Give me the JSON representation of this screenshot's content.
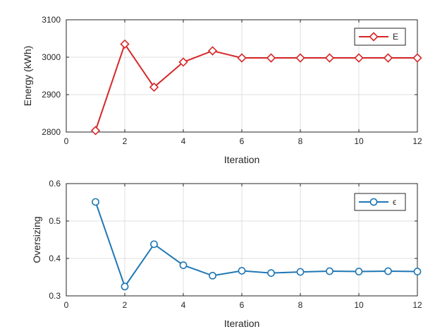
{
  "chart_data": [
    {
      "type": "line",
      "xlabel": "Iteration",
      "ylabel": "Energy (kWh)",
      "xlim": [
        0,
        12
      ],
      "ylim": [
        2800,
        3100
      ],
      "xticks": [
        "0",
        "2",
        "4",
        "6",
        "8",
        "10",
        "12"
      ],
      "yticks": [
        "2800",
        "2900",
        "3000",
        "3100"
      ],
      "grid": true,
      "legend_position": "top-right",
      "series": [
        {
          "name": "E",
          "color": "#d62728",
          "marker": "diamond",
          "x": [
            1,
            2,
            3,
            4,
            5,
            6,
            7,
            8,
            9,
            10,
            11,
            12
          ],
          "y": [
            2804,
            3035,
            2920,
            2987,
            3017,
            2998,
            2998,
            2998,
            2998,
            2998,
            2998,
            2998
          ]
        }
      ]
    },
    {
      "type": "line",
      "xlabel": "Iteration",
      "ylabel": "Oversizing",
      "xlim": [
        0,
        12
      ],
      "ylim": [
        0.3,
        0.6
      ],
      "xticks": [
        "0",
        "2",
        "4",
        "6",
        "8",
        "10",
        "12"
      ],
      "yticks": [
        "0.3",
        "0.4",
        "0.5",
        "0.6"
      ],
      "grid": true,
      "legend_position": "top-right",
      "series": [
        {
          "name": "ϵ",
          "color": "#1f77b4",
          "marker": "circle",
          "x": [
            1,
            2,
            3,
            4,
            5,
            6,
            7,
            8,
            9,
            10,
            11,
            12
          ],
          "y": [
            0.551,
            0.325,
            0.438,
            0.382,
            0.354,
            0.367,
            0.361,
            0.364,
            0.366,
            0.365,
            0.366,
            0.365
          ]
        }
      ]
    }
  ]
}
